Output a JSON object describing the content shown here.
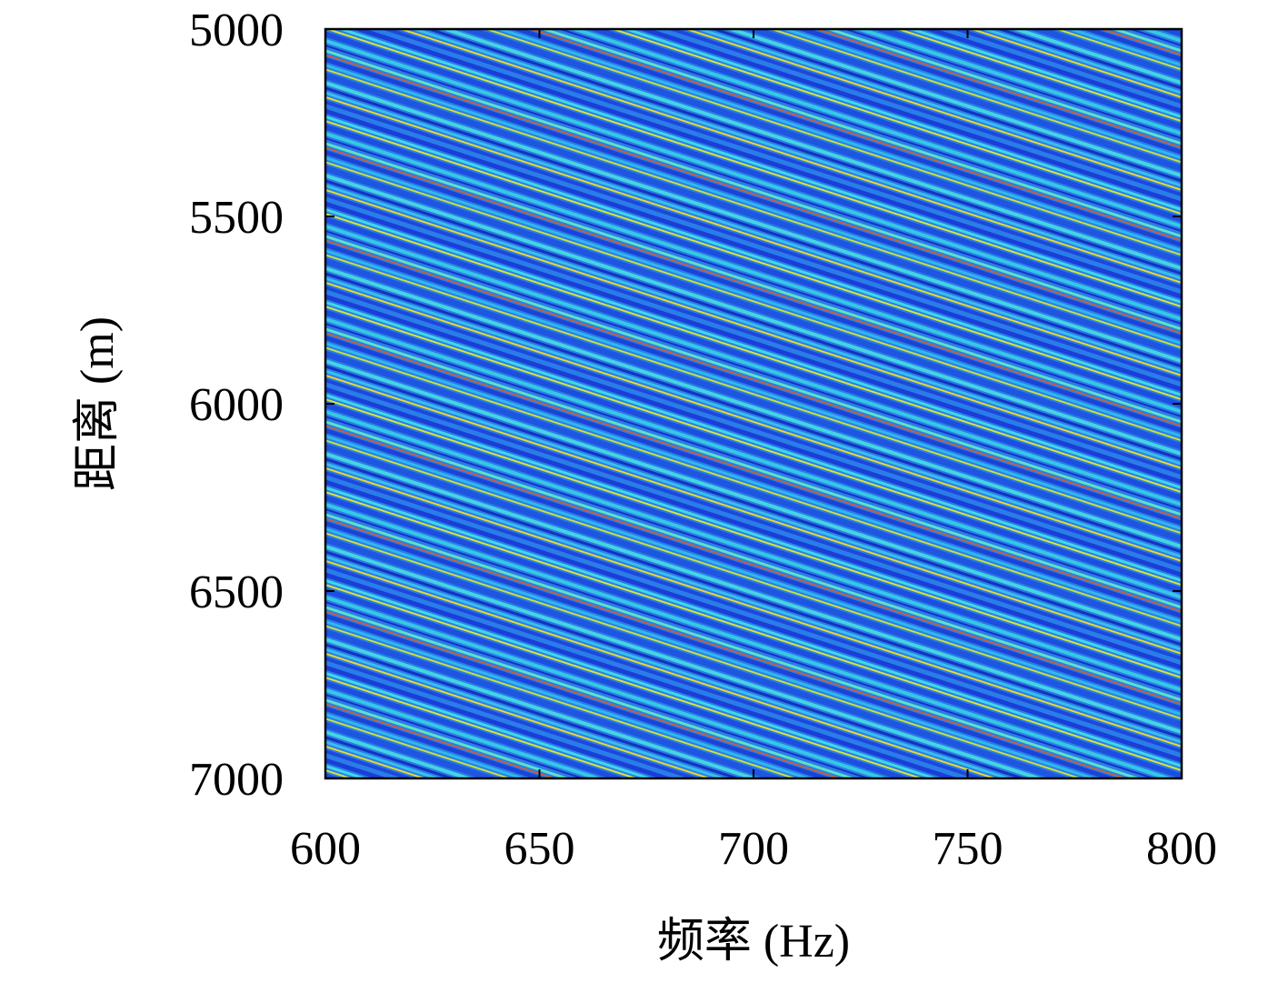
{
  "chart_data": {
    "type": "heatmap",
    "xlabel": "频率 (Hz)",
    "ylabel": "距离 (m)",
    "xlim": [
      600,
      800
    ],
    "xticks": [
      600,
      650,
      700,
      750,
      800
    ],
    "ylim": [
      7000,
      5000
    ],
    "yticks": [
      5000,
      5500,
      6000,
      6500,
      7000
    ],
    "grid": false
  }
}
